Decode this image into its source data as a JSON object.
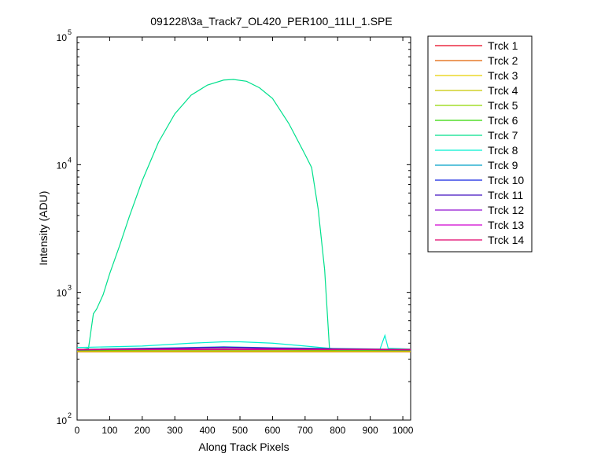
{
  "chart_data": {
    "type": "line",
    "title": "091228\\3a_Track7_OL420_PER100_11LI_1.SPE",
    "xlabel": "Along Track Pixels",
    "ylabel": "Intensity (ADU)",
    "xlim": [
      0,
      1024
    ],
    "ylim": [
      100,
      100000
    ],
    "yscale": "log",
    "grid": false,
    "legend_position": "outside-top-right",
    "x_ticks": [
      0,
      100,
      200,
      300,
      400,
      500,
      600,
      700,
      800,
      900,
      1000
    ],
    "y_ticks": [
      {
        "value": 100,
        "base": "10",
        "exp": "2"
      },
      {
        "value": 1000,
        "base": "10",
        "exp": "3"
      },
      {
        "value": 10000,
        "base": "10",
        "exp": "4"
      },
      {
        "value": 100000,
        "base": "10",
        "exp": "5"
      }
    ],
    "series": [
      {
        "name": "Trck 1",
        "color": "#e8001c",
        "points": [
          [
            0,
            348
          ],
          [
            1024,
            348
          ]
        ]
      },
      {
        "name": "Trck 2",
        "color": "#e06000",
        "points": [
          [
            0,
            342
          ],
          [
            1024,
            342
          ]
        ]
      },
      {
        "name": "Trck 3",
        "color": "#e6d000",
        "points": [
          [
            0,
            345
          ],
          [
            1024,
            345
          ]
        ]
      },
      {
        "name": "Trck 4",
        "color": "#c8c800",
        "points": [
          [
            0,
            347
          ],
          [
            1024,
            347
          ]
        ]
      },
      {
        "name": "Trck 5",
        "color": "#90d800",
        "points": [
          [
            0,
            350
          ],
          [
            1024,
            350
          ]
        ]
      },
      {
        "name": "Trck 6",
        "color": "#30d800",
        "points": [
          [
            0,
            352
          ],
          [
            200,
            355
          ],
          [
            450,
            360
          ],
          [
            700,
            355
          ],
          [
            1024,
            352
          ]
        ]
      },
      {
        "name": "Trck 7",
        "color": "#00e08c",
        "points": [
          [
            0,
            355
          ],
          [
            20,
            358
          ],
          [
            35,
            365
          ],
          [
            50,
            680
          ],
          [
            60,
            740
          ],
          [
            80,
            960
          ],
          [
            100,
            1400
          ],
          [
            130,
            2300
          ],
          [
            160,
            3900
          ],
          [
            200,
            7500
          ],
          [
            250,
            15000
          ],
          [
            300,
            25000
          ],
          [
            350,
            35000
          ],
          [
            400,
            42000
          ],
          [
            450,
            46000
          ],
          [
            480,
            46500
          ],
          [
            520,
            45000
          ],
          [
            560,
            40000
          ],
          [
            600,
            33000
          ],
          [
            650,
            21000
          ],
          [
            700,
            12000
          ],
          [
            720,
            9500
          ],
          [
            740,
            4500
          ],
          [
            760,
            1500
          ],
          [
            775,
            358
          ],
          [
            800,
            355
          ],
          [
            1024,
            355
          ]
        ]
      },
      {
        "name": "Trck 8",
        "color": "#00f0d0",
        "points": [
          [
            0,
            370
          ],
          [
            200,
            380
          ],
          [
            350,
            400
          ],
          [
            450,
            410
          ],
          [
            500,
            410
          ],
          [
            600,
            400
          ],
          [
            700,
            380
          ],
          [
            800,
            360
          ],
          [
            930,
            360
          ],
          [
            945,
            460
          ],
          [
            955,
            365
          ],
          [
            1024,
            360
          ]
        ]
      },
      {
        "name": "Trck 9",
        "color": "#00a0c8",
        "points": [
          [
            0,
            358
          ],
          [
            300,
            368
          ],
          [
            450,
            375
          ],
          [
            600,
            368
          ],
          [
            1024,
            358
          ]
        ]
      },
      {
        "name": "Trck 10",
        "color": "#1020e0",
        "points": [
          [
            0,
            356
          ],
          [
            300,
            364
          ],
          [
            450,
            370
          ],
          [
            600,
            364
          ],
          [
            1024,
            356
          ]
        ]
      },
      {
        "name": "Trck 11",
        "color": "#4010c0",
        "points": [
          [
            0,
            356
          ],
          [
            300,
            366
          ],
          [
            450,
            372
          ],
          [
            600,
            366
          ],
          [
            1024,
            356
          ]
        ]
      },
      {
        "name": "Trck 12",
        "color": "#9010d0",
        "points": [
          [
            0,
            354
          ],
          [
            300,
            362
          ],
          [
            450,
            368
          ],
          [
            600,
            362
          ],
          [
            1024,
            354
          ]
        ]
      },
      {
        "name": "Trck 13",
        "color": "#d000d0",
        "points": [
          [
            0,
            356
          ],
          [
            1024,
            356
          ]
        ]
      },
      {
        "name": "Trck 14",
        "color": "#e0006a",
        "points": [
          [
            0,
            358
          ],
          [
            1024,
            358
          ]
        ]
      }
    ]
  }
}
